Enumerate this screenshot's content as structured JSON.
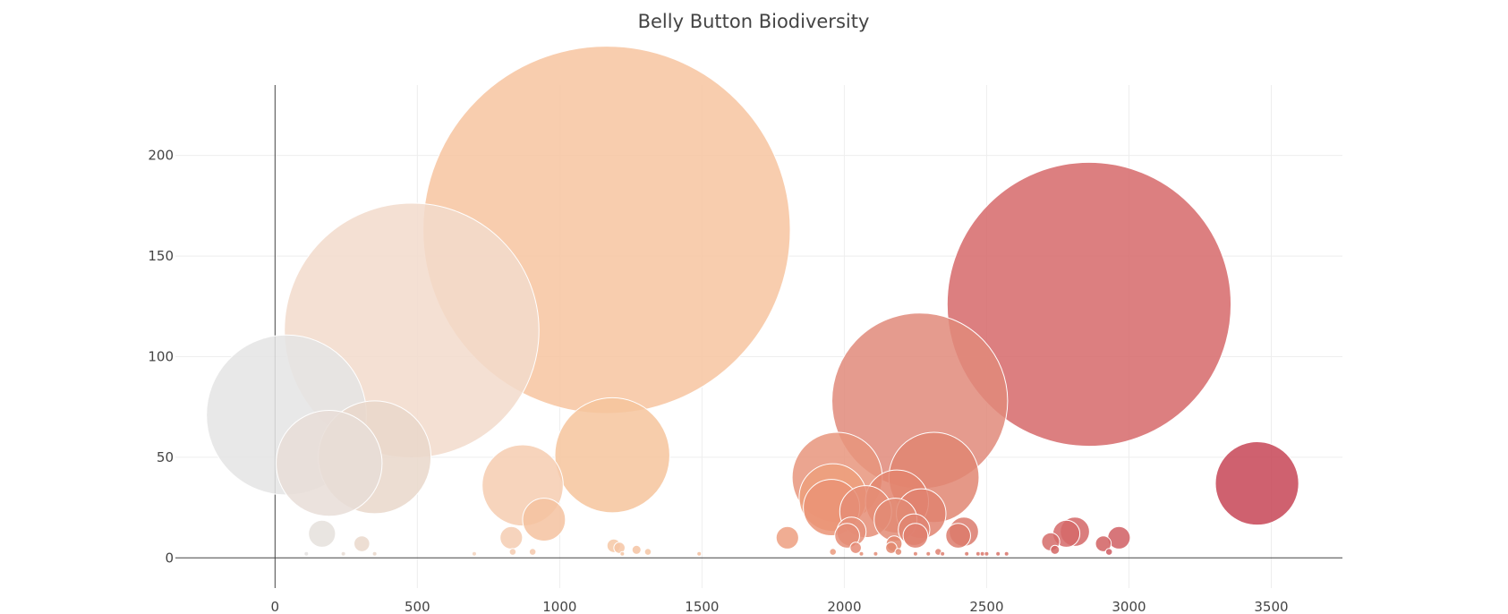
{
  "chart_data": {
    "type": "scatter",
    "title": "Belly Button Biodiversity",
    "xlabel": "",
    "ylabel": "",
    "xlim": [
      -350,
      3750
    ],
    "ylim": [
      -15,
      235
    ],
    "x_ticks": [
      0,
      500,
      1000,
      1500,
      2000,
      2500,
      3000,
      3500
    ],
    "y_ticks": [
      0,
      50,
      100,
      150,
      200
    ],
    "x_tick_labels": [
      "0",
      "500",
      "1000",
      "1500",
      "2000",
      "2500",
      "3000",
      "3500"
    ],
    "y_tick_labels": [
      "0",
      "50",
      "100",
      "150",
      "200"
    ],
    "grid": true,
    "legend": "none",
    "series": [
      {
        "points": [
          {
            "x": 40,
            "y": 71,
            "size": 71,
            "color": "#e4e4e4"
          },
          {
            "x": 190,
            "y": 47,
            "size": 47,
            "color": "#e8ddd7"
          },
          {
            "x": 350,
            "y": 50,
            "size": 50,
            "color": "#e9d7ca"
          },
          {
            "x": 480,
            "y": 113,
            "size": 113,
            "color": "#f2dacb"
          },
          {
            "x": 1165,
            "y": 163,
            "size": 163,
            "color": "#f7c4a0"
          },
          {
            "x": 2860,
            "y": 126,
            "size": 126,
            "color": "#d6686a"
          },
          {
            "x": 2265,
            "y": 78,
            "size": 78,
            "color": "#e18a7a"
          },
          {
            "x": 1185,
            "y": 51,
            "size": 51,
            "color": "#f6c49c"
          },
          {
            "x": 870,
            "y": 36,
            "size": 36,
            "color": "#f6cdb0"
          },
          {
            "x": 3450,
            "y": 37,
            "size": 37,
            "color": "#c74556"
          },
          {
            "x": 1975,
            "y": 40,
            "size": 40,
            "color": "#e8957c"
          },
          {
            "x": 2315,
            "y": 40,
            "size": 40,
            "color": "#e18672"
          },
          {
            "x": 1960,
            "y": 30,
            "size": 30,
            "color": "#ed9f7c"
          },
          {
            "x": 1955,
            "y": 25,
            "size": 25,
            "color": "#ea9376"
          },
          {
            "x": 2185,
            "y": 28,
            "size": 28,
            "color": "#e3856f"
          },
          {
            "x": 2075,
            "y": 23,
            "size": 23,
            "color": "#e58d75"
          },
          {
            "x": 2270,
            "y": 22,
            "size": 22,
            "color": "#e08370"
          },
          {
            "x": 2180,
            "y": 19,
            "size": 19,
            "color": "#e28b74"
          },
          {
            "x": 945,
            "y": 19,
            "size": 19,
            "color": "#f4c2a0"
          },
          {
            "x": 2245,
            "y": 14,
            "size": 14,
            "color": "#e08572"
          },
          {
            "x": 2025,
            "y": 13,
            "size": 13,
            "color": "#e5917a"
          },
          {
            "x": 2420,
            "y": 13,
            "size": 13,
            "color": "#db7a6c"
          },
          {
            "x": 2810,
            "y": 13,
            "size": 13,
            "color": "#d46666"
          },
          {
            "x": 2780,
            "y": 12,
            "size": 12,
            "color": "#d56868"
          },
          {
            "x": 165,
            "y": 12,
            "size": 12,
            "color": "#e5e0dc"
          },
          {
            "x": 2250,
            "y": 11,
            "size": 11,
            "color": "#df7f6e"
          },
          {
            "x": 2400,
            "y": 11,
            "size": 11,
            "color": "#dc7b6c"
          },
          {
            "x": 2010,
            "y": 11,
            "size": 11,
            "color": "#e48c76"
          },
          {
            "x": 830,
            "y": 10,
            "size": 10,
            "color": "#f4ccb2"
          },
          {
            "x": 1800,
            "y": 10,
            "size": 10,
            "color": "#ed9f80"
          },
          {
            "x": 2965,
            "y": 10,
            "size": 10,
            "color": "#d05e63"
          },
          {
            "x": 2725,
            "y": 8,
            "size": 8,
            "color": "#d56b68"
          },
          {
            "x": 2910,
            "y": 7,
            "size": 7,
            "color": "#d16062"
          },
          {
            "x": 305,
            "y": 7,
            "size": 7,
            "color": "#ead8cb"
          },
          {
            "x": 2175,
            "y": 7,
            "size": 7,
            "color": "#e2876f"
          },
          {
            "x": 1190,
            "y": 6,
            "size": 6,
            "color": "#f6c8a6"
          },
          {
            "x": 1210,
            "y": 5,
            "size": 5,
            "color": "#f6c6a4"
          },
          {
            "x": 2040,
            "y": 5,
            "size": 5,
            "color": "#e58a74"
          },
          {
            "x": 2165,
            "y": 5,
            "size": 5,
            "color": "#e2886f"
          },
          {
            "x": 2740,
            "y": 4,
            "size": 4,
            "color": "#d26563"
          },
          {
            "x": 1270,
            "y": 4,
            "size": 4,
            "color": "#f4c3a2"
          },
          {
            "x": 2930,
            "y": 3,
            "size": 3,
            "color": "#cf5b60"
          },
          {
            "x": 1310,
            "y": 3,
            "size": 3,
            "color": "#f4c6a4"
          },
          {
            "x": 835,
            "y": 3,
            "size": 3,
            "color": "#f4cbb0"
          },
          {
            "x": 905,
            "y": 3,
            "size": 3,
            "color": "#f4c8ac"
          },
          {
            "x": 1960,
            "y": 3,
            "size": 3,
            "color": "#eb9a7c"
          },
          {
            "x": 2330,
            "y": 3,
            "size": 3,
            "color": "#df8070"
          },
          {
            "x": 2190,
            "y": 3,
            "size": 3,
            "color": "#e28a72"
          },
          {
            "x": 2250,
            "y": 2,
            "size": 2,
            "color": "#e08572"
          },
          {
            "x": 2110,
            "y": 2,
            "size": 2,
            "color": "#e48c76"
          },
          {
            "x": 2060,
            "y": 2,
            "size": 2,
            "color": "#e48e76"
          },
          {
            "x": 2295,
            "y": 2,
            "size": 2,
            "color": "#df8270"
          },
          {
            "x": 2345,
            "y": 2,
            "size": 2,
            "color": "#dd7e6e"
          },
          {
            "x": 2430,
            "y": 2,
            "size": 2,
            "color": "#db7a6c"
          },
          {
            "x": 2470,
            "y": 2,
            "size": 2,
            "color": "#da786b"
          },
          {
            "x": 2485,
            "y": 2,
            "size": 2,
            "color": "#da766a"
          },
          {
            "x": 2500,
            "y": 2,
            "size": 2,
            "color": "#d9756a"
          },
          {
            "x": 2540,
            "y": 2,
            "size": 2,
            "color": "#d87369"
          },
          {
            "x": 2570,
            "y": 2,
            "size": 2,
            "color": "#d87269"
          },
          {
            "x": 1490,
            "y": 2,
            "size": 2,
            "color": "#f2bd9e"
          },
          {
            "x": 1220,
            "y": 2,
            "size": 2,
            "color": "#f6c6a4"
          },
          {
            "x": 350,
            "y": 2,
            "size": 2,
            "color": "#e9d7ca"
          },
          {
            "x": 110,
            "y": 2,
            "size": 2,
            "color": "#e4e2e0"
          },
          {
            "x": 240,
            "y": 2,
            "size": 2,
            "color": "#e7dcd4"
          },
          {
            "x": 700,
            "y": 2,
            "size": 2,
            "color": "#f2d2bc"
          }
        ]
      }
    ]
  }
}
